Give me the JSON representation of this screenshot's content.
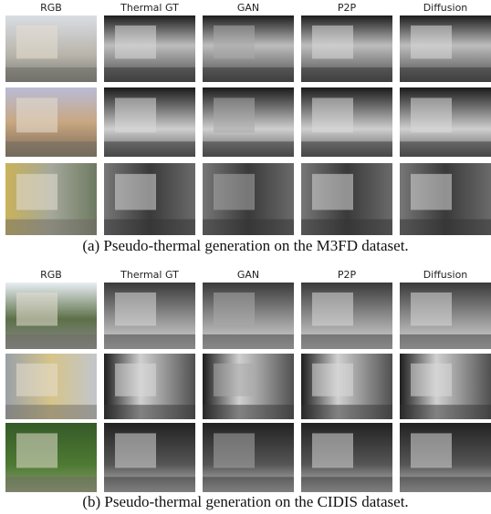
{
  "figure": {
    "panels": [
      {
        "column_headers": [
          "RGB",
          "Thermal GT",
          "GAN",
          "P2P",
          "Diffusion"
        ],
        "caption": "(a) Pseudo-thermal generation on the M3FD dataset."
      },
      {
        "column_headers": [
          "RGB",
          "Thermal GT",
          "GAN",
          "P2P",
          "Diffusion"
        ],
        "caption": "(b) Pseudo-thermal generation on the CIDIS dataset."
      }
    ]
  }
}
